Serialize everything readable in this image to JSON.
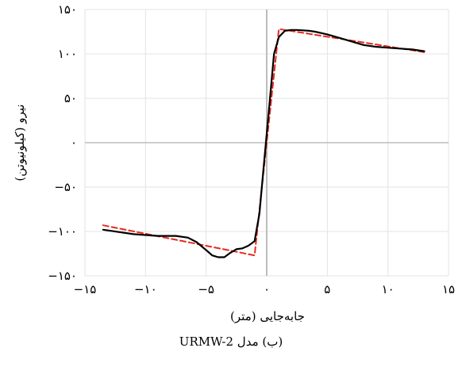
{
  "chart_data": {
    "type": "line",
    "xlabel": "جابه‌جایی (متر)",
    "ylabel": "نیرو (کیلونیوتن)",
    "xlim": [
      -15,
      15
    ],
    "ylim": [
      -150,
      150
    ],
    "x_ticks": [
      -15,
      -10,
      -5,
      0,
      5,
      10,
      15
    ],
    "y_ticks": [
      -150,
      -100,
      -50,
      0,
      50,
      100,
      150
    ],
    "x_tick_labels": [
      "−۱۵",
      "−۱۰",
      "−۵",
      "۰",
      "۵",
      "۱۰",
      "۱۵"
    ],
    "y_tick_labels": [
      "−۱۵۰",
      "−۱۰۰",
      "−۵۰",
      "۰",
      "۵۰",
      "۱۰۰",
      "۱۵۰"
    ],
    "grid": true,
    "series": [
      {
        "color": "#000000",
        "style": "solid",
        "x": [
          -13.5,
          -11,
          -9,
          -7.5,
          -6.5,
          -5.8,
          -5,
          -4.5,
          -4,
          -3.5,
          -3,
          -2.5,
          -2,
          -1.5,
          -1,
          -0.6,
          -0.2,
          0.2,
          0.6,
          1,
          1.5,
          2,
          2.5,
          3,
          3.5,
          4,
          5,
          6,
          7,
          8,
          9,
          10,
          11,
          12,
          13
        ],
        "y": [
          -98,
          -103,
          -105,
          -105,
          -107,
          -112,
          -121,
          -127,
          -129,
          -129,
          -124,
          -120,
          -119,
          -116,
          -111,
          -80,
          -20,
          40,
          100,
          119,
          126,
          127,
          127,
          126.5,
          126,
          125,
          122,
          118,
          114,
          110,
          108,
          107,
          106,
          105,
          103
        ]
      },
      {
        "color": "#e8281e",
        "style": "dashed",
        "x": [
          -13.5,
          -1,
          1,
          13
        ],
        "y": [
          -93,
          -127,
          128,
          102
        ]
      }
    ]
  },
  "caption": "(ب) مدل URMW-2"
}
